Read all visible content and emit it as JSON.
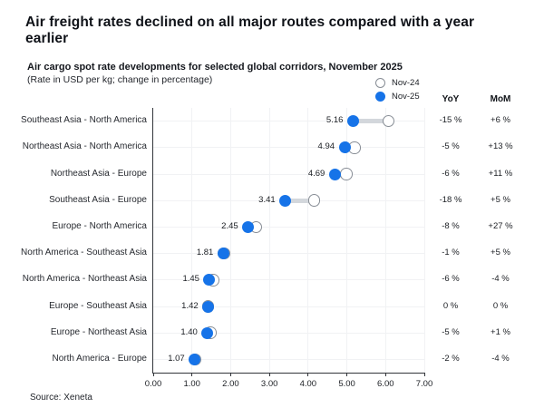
{
  "title": "Air freight rates declined on all major routes compared with a year earlier",
  "subtitle": "Air cargo spot rate developments for selected global corridors, November 2025",
  "note": "(Rate in USD per kg; change in percentage)",
  "source": "Source: Xeneta",
  "columns": {
    "yoy": "YoY",
    "mom": "MoM"
  },
  "legend": [
    {
      "label": "Nov-24",
      "style": "open"
    },
    {
      "label": "Nov-25",
      "style": "filled"
    }
  ],
  "colors": {
    "accent_blue": "#1673e8",
    "open_circle_border": "#878d95",
    "connector_gray": "#d3d7dc",
    "grid_gray": "#f1f2f4",
    "axis_dark": "#32353a"
  },
  "chart_data": {
    "type": "scatter",
    "subtype": "dumbbell-dot-plot",
    "title": "Air cargo spot rate developments for selected global corridors, November 2025",
    "xlabel": "Rate in USD per kg",
    "xlim": [
      0,
      7
    ],
    "x_ticks": [
      "0.00",
      "1.00",
      "2.00",
      "3.00",
      "4.00",
      "5.00",
      "6.00",
      "7.00"
    ],
    "grid": true,
    "legend_position": "top-right",
    "series_names": [
      "Nov-24",
      "Nov-25"
    ],
    "rows": [
      {
        "route": "Southeast Asia - North America",
        "nov25": 5.16,
        "nov25_label": "5.16",
        "nov24_est": 6.07,
        "yoy": "-15 %",
        "mom": "+6 %"
      },
      {
        "route": "Northeast Asia - North America",
        "nov25": 4.94,
        "nov25_label": "4.94",
        "nov24_est": 5.2,
        "yoy": "-5 %",
        "mom": "+13 %"
      },
      {
        "route": "Northeast Asia - Europe",
        "nov25": 4.69,
        "nov25_label": "4.69",
        "nov24_est": 4.99,
        "yoy": "-6 %",
        "mom": "+11 %"
      },
      {
        "route": "Southeast Asia - Europe",
        "nov25": 3.41,
        "nov25_label": "3.41",
        "nov24_est": 4.16,
        "yoy": "-18 %",
        "mom": "+5 %"
      },
      {
        "route": "Europe - North America",
        "nov25": 2.45,
        "nov25_label": "2.45",
        "nov24_est": 2.66,
        "yoy": "-8 %",
        "mom": "+27 %"
      },
      {
        "route": "North America - Southeast Asia",
        "nov25": 1.81,
        "nov25_label": "1.81",
        "nov24_est": 1.83,
        "yoy": "-1 %",
        "mom": "+5 %"
      },
      {
        "route": "North America - Northeast Asia",
        "nov25": 1.45,
        "nov25_label": "1.45",
        "nov24_est": 1.54,
        "yoy": "-6 %",
        "mom": "-4 %"
      },
      {
        "route": "Europe - Southeast Asia",
        "nov25": 1.42,
        "nov25_label": "1.42",
        "nov24_est": 1.42,
        "yoy": "0 %",
        "mom": "0 %"
      },
      {
        "route": "Europe - Northeast Asia",
        "nov25": 1.4,
        "nov25_label": "1.40",
        "nov24_est": 1.47,
        "yoy": "-5 %",
        "mom": "+1 %"
      },
      {
        "route": "North America - Europe",
        "nov25": 1.07,
        "nov25_label": "1.07",
        "nov24_est": 1.09,
        "yoy": "-2 %",
        "mom": "-4 %"
      }
    ]
  }
}
